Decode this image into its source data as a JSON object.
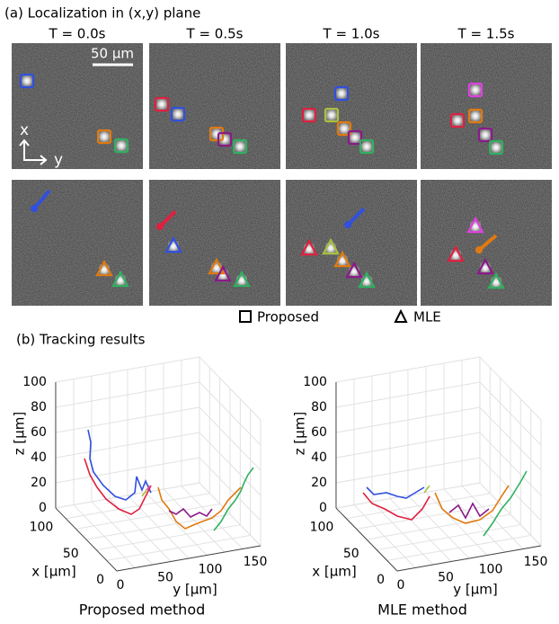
{
  "panel_a": {
    "title": "(a) Localization in (x,y) plane",
    "times": [
      "T = 0.0s",
      "T = 0.5s",
      "T = 1.0s",
      "T = 1.5s"
    ],
    "scale_bar": "50 µm",
    "axis_x": "x",
    "axis_y": "y",
    "legend": [
      "Proposed",
      "MLE"
    ]
  },
  "panel_b": {
    "title": "(b) Tracking results",
    "plots": [
      {
        "caption": "Proposed method",
        "z_label": "z [µm]",
        "x_label": "x [µm]",
        "y_label": "y [µm]",
        "z_ticks": [
          0,
          20,
          40,
          60,
          80,
          100
        ],
        "x_ticks": [
          0,
          50,
          100
        ],
        "y_ticks": [
          0,
          50,
          100,
          150
        ]
      },
      {
        "caption": "MLE method",
        "z_label": "z [µm]",
        "x_label": "x [µm]",
        "y_label": "y [µm]",
        "z_ticks": [
          0,
          20,
          40,
          60,
          80,
          100
        ],
        "x_ticks": [
          0,
          50,
          100
        ],
        "y_ticks": [
          0,
          50,
          100,
          150
        ]
      }
    ]
  }
}
